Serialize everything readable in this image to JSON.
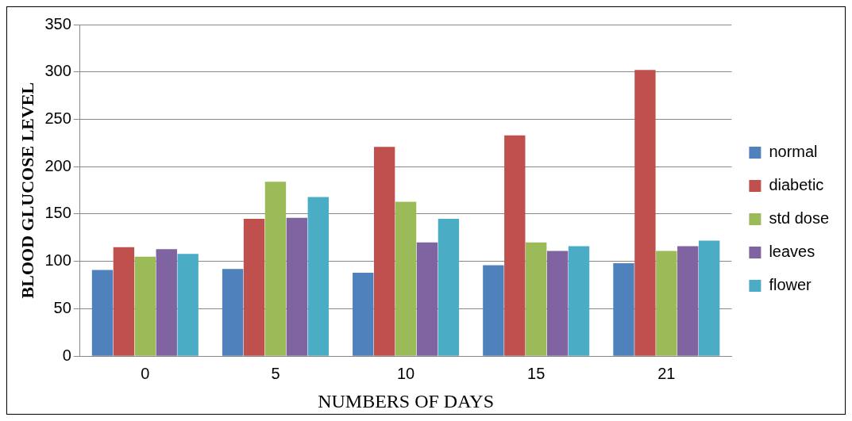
{
  "chart_data": {
    "type": "bar",
    "xlabel": "NUMBERS OF DAYS",
    "ylabel": "BLOOD GLUCOSE LEVEL",
    "categories": [
      "0",
      "5",
      "10",
      "15",
      "21"
    ],
    "series": [
      {
        "name": "normal",
        "color": "#4f81bd",
        "values": [
          91,
          92,
          88,
          96,
          98
        ]
      },
      {
        "name": "diabetic",
        "color": "#c0504d",
        "values": [
          115,
          145,
          221,
          233,
          302
        ]
      },
      {
        "name": "std dose",
        "color": "#9bbb59",
        "values": [
          105,
          184,
          163,
          120,
          111
        ]
      },
      {
        "name": "leaves",
        "color": "#8064a2",
        "values": [
          113,
          146,
          120,
          111,
          116
        ]
      },
      {
        "name": "flower",
        "color": "#4bacc6",
        "values": [
          108,
          168,
          145,
          116,
          122
        ]
      }
    ],
    "ylim": [
      0,
      350
    ],
    "yticks": [
      0,
      50,
      100,
      150,
      200,
      250,
      300,
      350
    ],
    "grid": "y",
    "legend": "right"
  }
}
